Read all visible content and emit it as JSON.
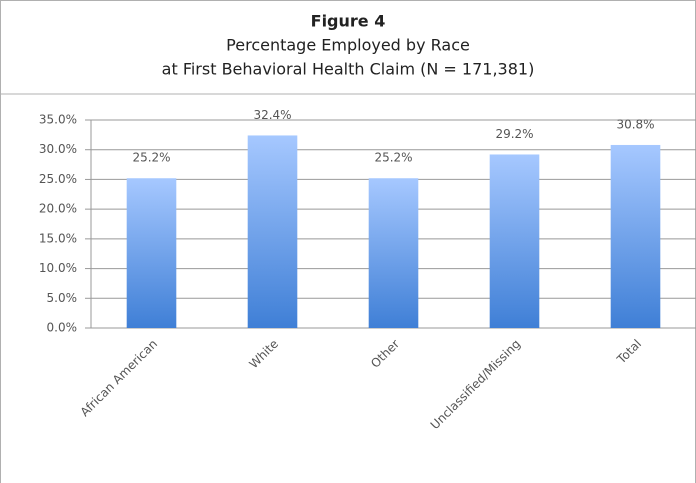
{
  "chart_data": {
    "type": "bar",
    "title": "Figure 4",
    "subtitle": [
      "Percentage Employed by Race",
      "at First Behavioral Health Claim (N = 171,381)"
    ],
    "categories": [
      "African American",
      "White",
      "Other",
      "Unclassified/Missing",
      "Total"
    ],
    "values": [
      25.2,
      32.4,
      25.2,
      29.2,
      30.8
    ],
    "value_labels": [
      "25.2%",
      "32.4%",
      "25.2%",
      "29.2%",
      "30.8%"
    ],
    "color": "#3f7fd6",
    "ylim": [
      0,
      35
    ],
    "yticks": [
      {
        "value": 0,
        "label": "0.0%"
      },
      {
        "value": 5,
        "label": "5.0%"
      },
      {
        "value": 10,
        "label": "10.0%"
      },
      {
        "value": 15,
        "label": "15.0%"
      },
      {
        "value": 20,
        "label": "20.0%"
      },
      {
        "value": 25,
        "label": "25.0%"
      },
      {
        "value": 30,
        "label": "30.0%"
      },
      {
        "value": 35,
        "label": "35.0%"
      }
    ],
    "grid": true
  }
}
